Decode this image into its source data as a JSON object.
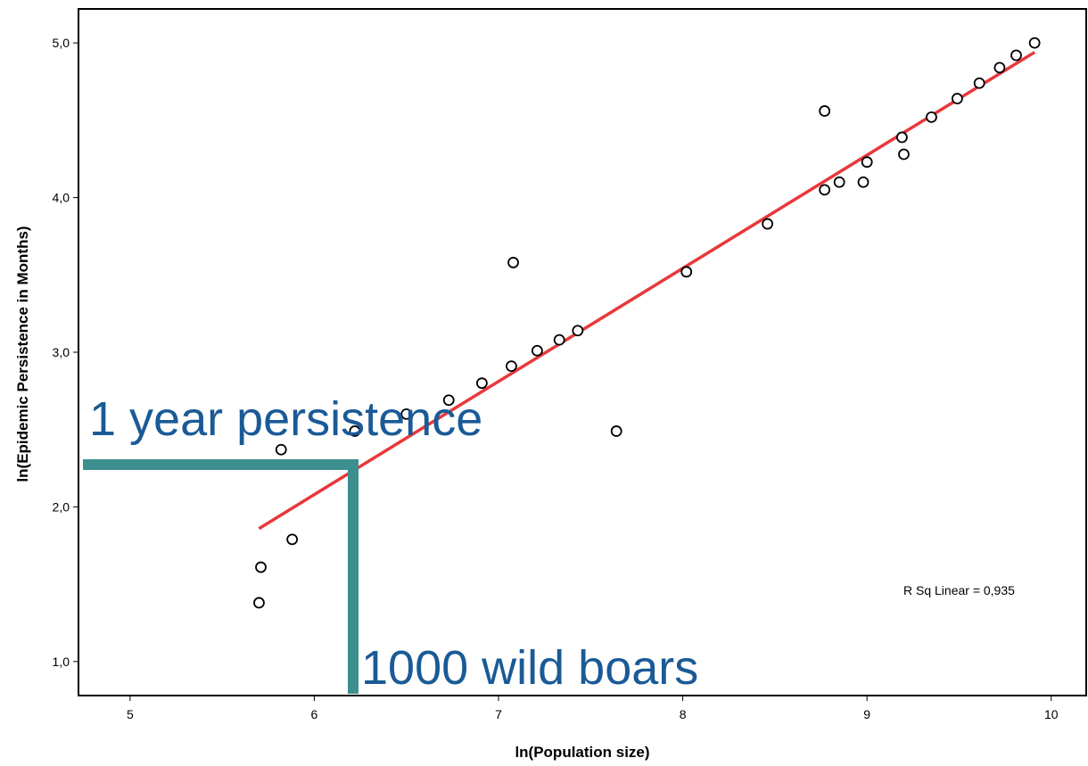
{
  "chart_data": {
    "type": "scatter",
    "x_label": "ln(Population size)",
    "y_label": "ln(Epidemic Persistence in Months)",
    "x": [
      5.7,
      5.71,
      5.82,
      5.88,
      6.22,
      6.5,
      6.73,
      6.91,
      7.07,
      7.08,
      7.21,
      7.33,
      7.43,
      7.64,
      8.02,
      8.46,
      8.77,
      8.77,
      8.85,
      8.98,
      9.0,
      9.19,
      9.2,
      9.35,
      9.49,
      9.61,
      9.72,
      9.81,
      9.91
    ],
    "values": [
      1.38,
      1.61,
      2.37,
      1.79,
      2.49,
      2.6,
      2.69,
      2.8,
      2.91,
      3.58,
      3.01,
      3.08,
      3.14,
      2.49,
      3.52,
      3.83,
      4.56,
      4.05,
      4.1,
      4.1,
      4.23,
      4.39,
      4.28,
      4.52,
      4.64,
      4.74,
      4.84,
      4.92,
      5.0
    ],
    "marker_color": "#000000",
    "fit": {
      "x": [
        5.7,
        9.91
      ],
      "values": [
        1.86,
        4.94
      ],
      "color": "#e8383b"
    },
    "fit_label": "R Sq Linear = 0,935",
    "annotations": [
      "1 year persistence",
      "1000 wild boars"
    ],
    "xlim": [
      4.72,
      10.19
    ],
    "ylim": [
      0.78,
      5.22
    ],
    "xticks": [
      5,
      6,
      7,
      8,
      9,
      10
    ],
    "yticks": [
      {
        "value": 1,
        "label": "1,0"
      },
      {
        "value": 2,
        "label": "2,0"
      },
      {
        "value": 3,
        "label": "3,0"
      },
      {
        "value": 4,
        "label": "4,0"
      },
      {
        "value": 5,
        "label": "5,0"
      }
    ]
  }
}
